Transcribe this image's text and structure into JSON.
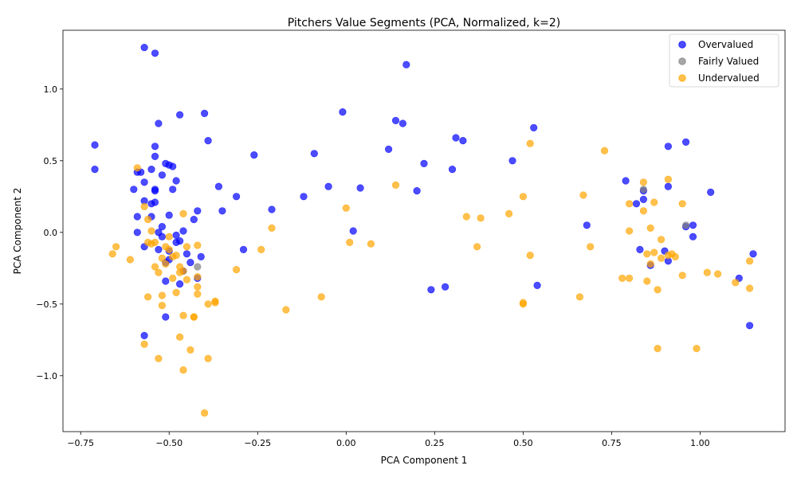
{
  "chart_data": {
    "type": "scatter",
    "title": "Pitchers Value Segments (PCA, Normalized, k=2)",
    "xlabel": "PCA Component 1",
    "ylabel": "PCA Component 2",
    "xlim": [
      -0.8,
      1.24
    ],
    "ylim": [
      -1.39,
      1.41
    ],
    "xticks": [
      -0.75,
      -0.5,
      -0.25,
      0.0,
      0.25,
      0.5,
      0.75,
      1.0
    ],
    "xtick_labels": [
      "−0.75",
      "−0.50",
      "−0.25",
      "0.00",
      "0.25",
      "0.50",
      "0.75",
      "1.00"
    ],
    "yticks": [
      -1.0,
      -0.5,
      0.0,
      0.5,
      1.0
    ],
    "ytick_labels": [
      "−1.0",
      "−0.5",
      "0.0",
      "0.5",
      "1.0"
    ],
    "grid": false,
    "legend_position": "top-right",
    "series": [
      {
        "name": "Overvalued",
        "color": "#0000ff",
        "points": [
          [
            -0.71,
            0.61
          ],
          [
            -0.71,
            0.44
          ],
          [
            -0.57,
            1.29
          ],
          [
            -0.54,
            1.25
          ],
          [
            0.17,
            1.17
          ],
          [
            -0.53,
            0.76
          ],
          [
            -0.47,
            0.82
          ],
          [
            -0.4,
            0.83
          ],
          [
            -0.01,
            0.84
          ],
          [
            0.14,
            0.78
          ],
          [
            0.16,
            0.76
          ],
          [
            0.53,
            0.73
          ],
          [
            0.31,
            0.66
          ],
          [
            0.33,
            0.64
          ],
          [
            -0.39,
            0.64
          ],
          [
            -0.54,
            0.6
          ],
          [
            -0.54,
            0.53
          ],
          [
            -0.26,
            0.54
          ],
          [
            -0.09,
            0.55
          ],
          [
            0.12,
            0.58
          ],
          [
            0.47,
            0.5
          ],
          [
            0.22,
            0.48
          ],
          [
            0.3,
            0.44
          ],
          [
            -0.51,
            0.48
          ],
          [
            -0.5,
            0.47
          ],
          [
            -0.49,
            0.46
          ],
          [
            -0.55,
            0.44
          ],
          [
            -0.52,
            0.4
          ],
          [
            -0.59,
            0.42
          ],
          [
            -0.58,
            0.42
          ],
          [
            -0.48,
            0.36
          ],
          [
            -0.57,
            0.35
          ],
          [
            -0.36,
            0.32
          ],
          [
            -0.05,
            0.32
          ],
          [
            0.04,
            0.31
          ],
          [
            -0.6,
            0.3
          ],
          [
            -0.54,
            0.3
          ],
          [
            -0.54,
            0.29
          ],
          [
            -0.49,
            0.3
          ],
          [
            -0.31,
            0.25
          ],
          [
            -0.12,
            0.25
          ],
          [
            0.2,
            0.29
          ],
          [
            -0.57,
            0.22
          ],
          [
            -0.54,
            0.21
          ],
          [
            -0.55,
            0.2
          ],
          [
            -0.42,
            0.15
          ],
          [
            -0.35,
            0.15
          ],
          [
            -0.21,
            0.16
          ],
          [
            -0.59,
            0.11
          ],
          [
            -0.55,
            0.11
          ],
          [
            -0.5,
            0.12
          ],
          [
            -0.43,
            0.09
          ],
          [
            0.02,
            0.01
          ],
          [
            -0.59,
            0.0
          ],
          [
            -0.52,
            0.04
          ],
          [
            -0.53,
            0.0
          ],
          [
            -0.48,
            -0.02
          ],
          [
            -0.46,
            0.01
          ],
          [
            -0.47,
            -0.06
          ],
          [
            -0.48,
            -0.07
          ],
          [
            -0.52,
            -0.03
          ],
          [
            -0.57,
            -0.1
          ],
          [
            -0.29,
            -0.12
          ],
          [
            -0.53,
            -0.12
          ],
          [
            -0.5,
            -0.13
          ],
          [
            -0.45,
            -0.15
          ],
          [
            -0.41,
            -0.17
          ],
          [
            -0.5,
            -0.19
          ],
          [
            -0.44,
            -0.21
          ],
          [
            -0.51,
            -0.21
          ],
          [
            -0.46,
            -0.27
          ],
          [
            -0.42,
            -0.32
          ],
          [
            -0.51,
            -0.34
          ],
          [
            -0.47,
            -0.36
          ],
          [
            0.24,
            -0.4
          ],
          [
            0.28,
            -0.38
          ],
          [
            0.54,
            -0.37
          ],
          [
            -0.57,
            -0.72
          ],
          [
            -0.51,
            -0.59
          ],
          [
            0.68,
            0.05
          ],
          [
            0.79,
            0.36
          ],
          [
            0.82,
            0.2
          ],
          [
            0.84,
            0.23
          ],
          [
            0.84,
            0.29
          ],
          [
            0.91,
            0.32
          ],
          [
            0.91,
            0.6
          ],
          [
            0.96,
            0.63
          ],
          [
            1.03,
            0.28
          ],
          [
            0.98,
            0.05
          ],
          [
            0.96,
            0.04
          ],
          [
            0.98,
            -0.03
          ],
          [
            0.83,
            -0.12
          ],
          [
            0.9,
            -0.13
          ],
          [
            0.91,
            -0.2
          ],
          [
            0.86,
            -0.23
          ],
          [
            1.11,
            -0.32
          ],
          [
            1.15,
            -0.15
          ],
          [
            1.14,
            -0.65
          ]
        ]
      },
      {
        "name": "Fairly Valued",
        "color": "#808080",
        "points": [
          [
            -0.42,
            -0.24
          ],
          [
            0.84,
            0.3
          ],
          [
            0.96,
            0.05
          ]
        ]
      },
      {
        "name": "Undervalued",
        "color": "#ffa500",
        "points": [
          [
            -0.59,
            0.45
          ],
          [
            -0.57,
            0.18
          ],
          [
            -0.56,
            0.09
          ],
          [
            -0.55,
            0.01
          ],
          [
            -0.46,
            0.13
          ],
          [
            -0.65,
            -0.1
          ],
          [
            -0.66,
            -0.15
          ],
          [
            -0.61,
            -0.19
          ],
          [
            -0.56,
            -0.07
          ],
          [
            -0.55,
            -0.08
          ],
          [
            -0.54,
            -0.07
          ],
          [
            -0.5,
            -0.03
          ],
          [
            -0.51,
            -0.1
          ],
          [
            -0.5,
            -0.12
          ],
          [
            -0.52,
            -0.18
          ],
          [
            -0.49,
            -0.17
          ],
          [
            -0.48,
            -0.16
          ],
          [
            -0.54,
            -0.24
          ],
          [
            -0.51,
            -0.22
          ],
          [
            -0.53,
            -0.28
          ],
          [
            -0.47,
            -0.24
          ],
          [
            -0.46,
            -0.27
          ],
          [
            -0.47,
            -0.28
          ],
          [
            -0.42,
            -0.09
          ],
          [
            -0.45,
            -0.1
          ],
          [
            -0.42,
            -0.31
          ],
          [
            -0.45,
            -0.33
          ],
          [
            -0.49,
            -0.32
          ],
          [
            -0.42,
            -0.38
          ],
          [
            -0.42,
            -0.43
          ],
          [
            -0.48,
            -0.42
          ],
          [
            -0.52,
            -0.44
          ],
          [
            -0.56,
            -0.45
          ],
          [
            -0.52,
            -0.51
          ],
          [
            -0.39,
            -0.5
          ],
          [
            -0.37,
            -0.48
          ],
          [
            -0.37,
            -0.49
          ],
          [
            -0.43,
            -0.59
          ],
          [
            -0.43,
            -0.59
          ],
          [
            -0.46,
            -0.58
          ],
          [
            -0.47,
            -0.73
          ],
          [
            -0.57,
            -0.78
          ],
          [
            -0.44,
            -0.82
          ],
          [
            -0.53,
            -0.88
          ],
          [
            -0.39,
            -0.88
          ],
          [
            -0.46,
            -0.96
          ],
          [
            -0.4,
            -1.26
          ],
          [
            -0.31,
            -0.26
          ],
          [
            -0.24,
            -0.12
          ],
          [
            -0.21,
            0.03
          ],
          [
            -0.17,
            -0.54
          ],
          [
            -0.07,
            -0.45
          ],
          [
            0.0,
            0.17
          ],
          [
            0.01,
            -0.07
          ],
          [
            0.07,
            -0.08
          ],
          [
            0.14,
            0.33
          ],
          [
            0.34,
            0.11
          ],
          [
            0.38,
            0.1
          ],
          [
            0.37,
            -0.1
          ],
          [
            0.46,
            0.13
          ],
          [
            0.5,
            0.25
          ],
          [
            0.52,
            0.62
          ],
          [
            0.52,
            -0.16
          ],
          [
            0.5,
            -0.49
          ],
          [
            0.5,
            -0.5
          ],
          [
            0.66,
            -0.45
          ],
          [
            0.67,
            0.26
          ],
          [
            0.69,
            -0.1
          ],
          [
            0.73,
            0.57
          ],
          [
            0.78,
            -0.32
          ],
          [
            0.8,
            -0.32
          ],
          [
            0.8,
            0.2
          ],
          [
            0.8,
            0.01
          ],
          [
            0.84,
            0.35
          ],
          [
            0.84,
            0.15
          ],
          [
            0.85,
            -0.15
          ],
          [
            0.85,
            -0.34
          ],
          [
            0.86,
            0.03
          ],
          [
            0.86,
            -0.22
          ],
          [
            0.87,
            0.21
          ],
          [
            0.87,
            -0.14
          ],
          [
            0.88,
            -0.4
          ],
          [
            0.89,
            -0.05
          ],
          [
            0.89,
            -0.18
          ],
          [
            0.91,
            0.37
          ],
          [
            0.91,
            -0.16
          ],
          [
            0.92,
            -0.15
          ],
          [
            0.93,
            -0.17
          ],
          [
            0.95,
            0.2
          ],
          [
            0.95,
            -0.3
          ],
          [
            0.88,
            -0.81
          ],
          [
            0.99,
            -0.81
          ],
          [
            1.02,
            -0.28
          ],
          [
            1.05,
            -0.29
          ],
          [
            1.1,
            -0.35
          ],
          [
            1.14,
            -0.2
          ],
          [
            1.14,
            -0.39
          ]
        ]
      }
    ]
  }
}
